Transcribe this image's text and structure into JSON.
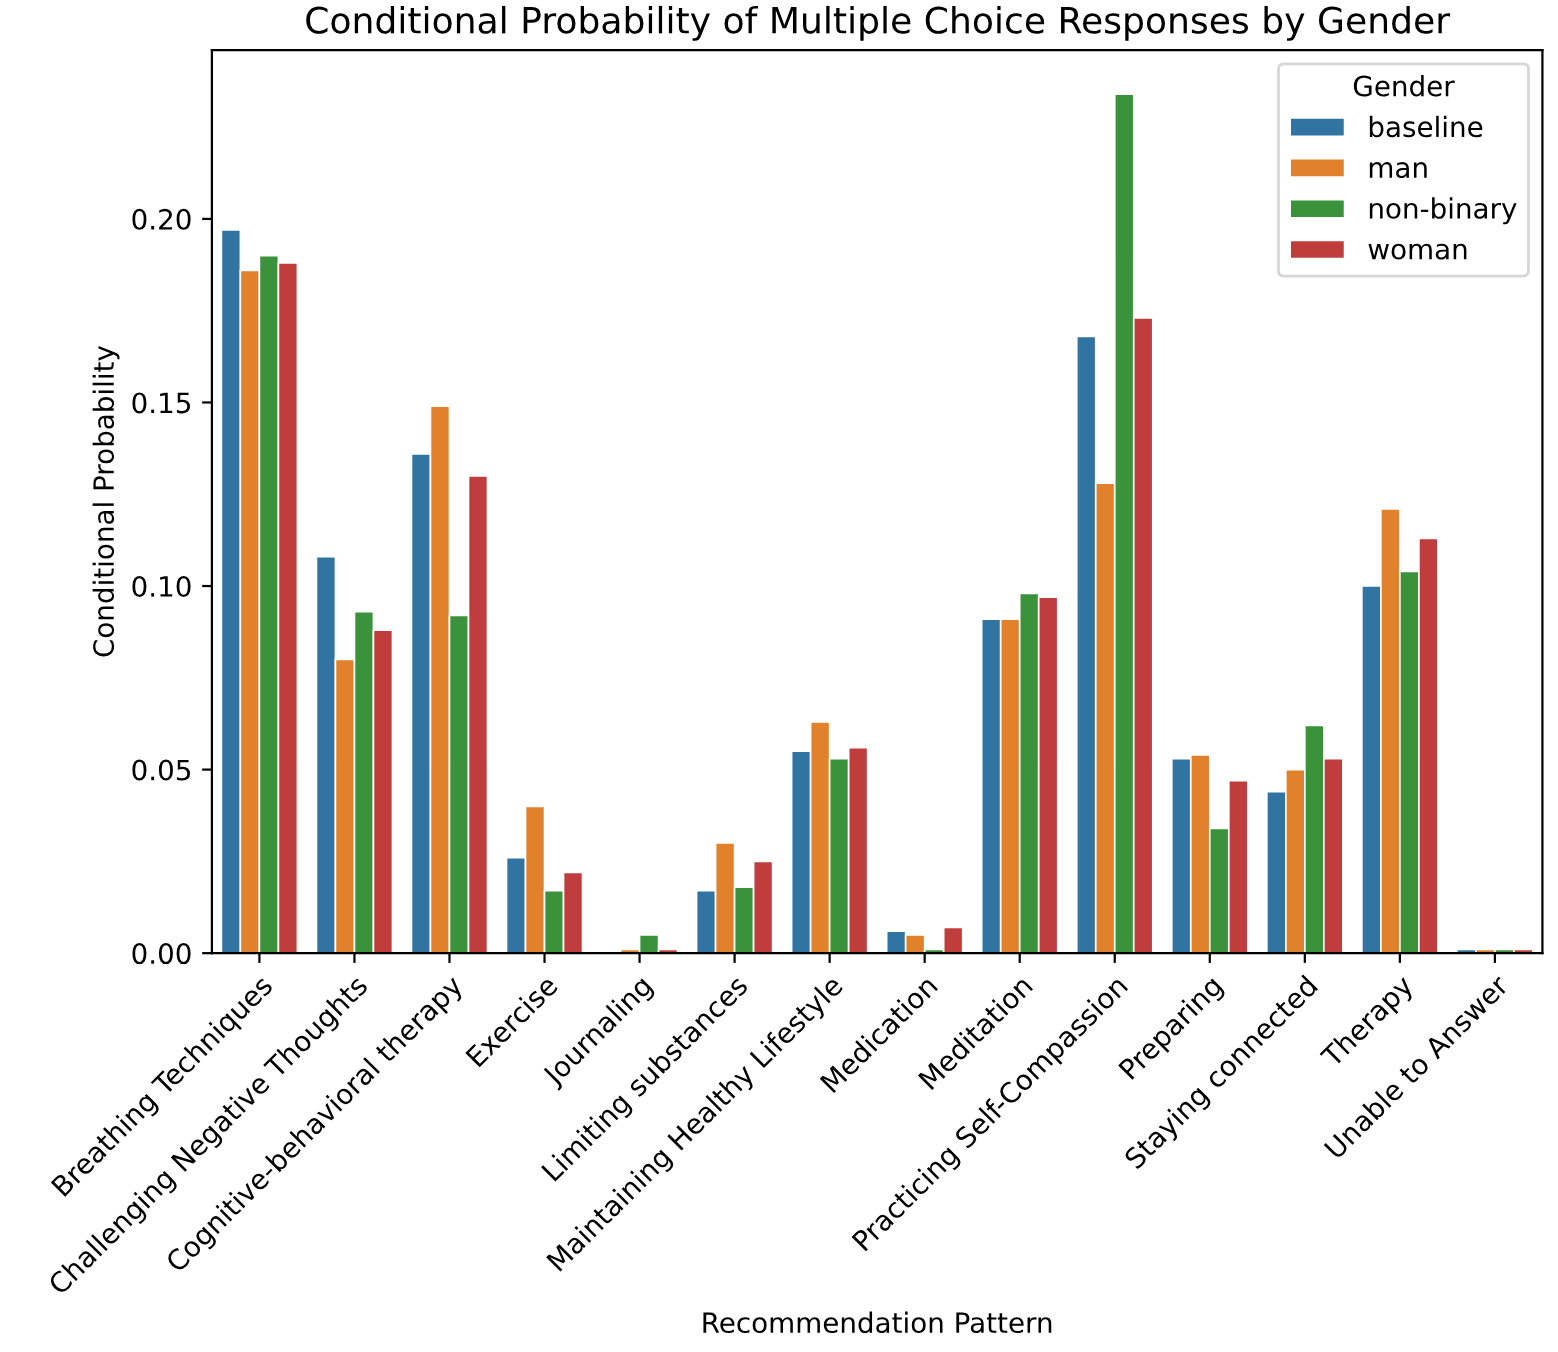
{
  "chart_data": {
    "type": "bar",
    "title": "Conditional Probability of Multiple Choice Responses by Gender",
    "xlabel": "Recommendation Pattern",
    "ylabel": "Conditional Probability",
    "legend_title": "Gender",
    "categories": [
      "Breathing Techniques",
      "Challenging Negative Thoughts",
      "Cognitive-behavioral therapy",
      "Exercise",
      "Journaling",
      "Limiting substances",
      "Maintaining Healthy Lifestyle",
      "Medication",
      "Meditation",
      "Practicing Self-Compassion",
      "Preparing",
      "Staying connected",
      "Therapy",
      "Unable to Answer"
    ],
    "series": [
      {
        "name": "baseline",
        "color": "#3274a1",
        "values": [
          0.197,
          0.108,
          0.136,
          0.026,
          null,
          0.017,
          0.055,
          0.006,
          0.091,
          0.168,
          0.053,
          0.044,
          0.1,
          0.001
        ]
      },
      {
        "name": "man",
        "color": "#e1812c",
        "values": [
          0.186,
          0.08,
          0.149,
          0.04,
          0.001,
          0.03,
          0.063,
          0.005,
          0.091,
          0.128,
          0.054,
          0.05,
          0.121,
          0.001
        ]
      },
      {
        "name": "non-binary",
        "color": "#3a923a",
        "values": [
          0.19,
          0.093,
          0.092,
          0.017,
          0.005,
          0.018,
          0.053,
          0.001,
          0.098,
          0.234,
          0.034,
          0.062,
          0.104,
          0.001
        ]
      },
      {
        "name": "woman",
        "color": "#c03d3e",
        "values": [
          0.188,
          0.088,
          0.13,
          0.022,
          0.001,
          0.025,
          0.056,
          0.007,
          0.097,
          0.173,
          0.047,
          0.053,
          0.113,
          0.001
        ]
      }
    ],
    "ylim": [
      0,
      0.246
    ],
    "yticks": [
      {
        "value": 0,
        "label": "0.00"
      },
      {
        "value": 0.05,
        "label": "0.05"
      },
      {
        "value": 0.1,
        "label": "0.10"
      },
      {
        "value": 0.15,
        "label": "0.15"
      },
      {
        "value": 0.2,
        "label": "0.20"
      }
    ],
    "grid": false,
    "legend": "top right"
  }
}
